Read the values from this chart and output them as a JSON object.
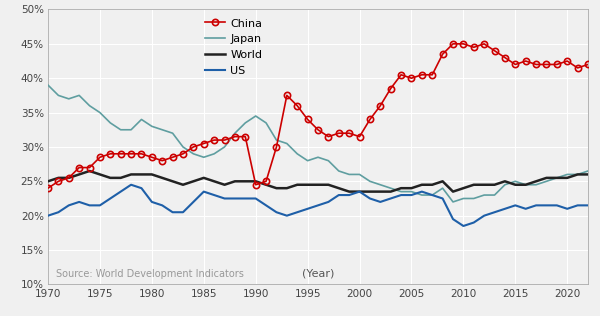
{
  "years": [
    1970,
    1971,
    1972,
    1973,
    1974,
    1975,
    1976,
    1977,
    1978,
    1979,
    1980,
    1981,
    1982,
    1983,
    1984,
    1985,
    1986,
    1987,
    1988,
    1989,
    1990,
    1991,
    1992,
    1993,
    1994,
    1995,
    1996,
    1997,
    1998,
    1999,
    2000,
    2001,
    2002,
    2003,
    2004,
    2005,
    2006,
    2007,
    2008,
    2009,
    2010,
    2011,
    2012,
    2013,
    2014,
    2015,
    2016,
    2017,
    2018,
    2019,
    2020,
    2021,
    2022
  ],
  "china": [
    24.0,
    25.0,
    25.5,
    27.0,
    27.0,
    28.5,
    29.0,
    29.0,
    29.0,
    29.0,
    28.5,
    28.0,
    28.5,
    29.0,
    30.0,
    30.5,
    31.0,
    31.0,
    31.5,
    31.5,
    24.5,
    25.0,
    30.0,
    37.5,
    36.0,
    34.0,
    32.5,
    31.5,
    32.0,
    32.0,
    31.5,
    34.0,
    36.0,
    38.5,
    40.5,
    40.0,
    40.5,
    40.5,
    43.5,
    45.0,
    45.0,
    44.5,
    45.0,
    44.0,
    43.0,
    42.0,
    42.5,
    42.0,
    42.0,
    42.0,
    42.5,
    41.5,
    42.0
  ],
  "japan": [
    39.0,
    37.5,
    37.0,
    37.5,
    36.0,
    35.0,
    33.5,
    32.5,
    32.5,
    34.0,
    33.0,
    32.5,
    32.0,
    30.0,
    29.0,
    28.5,
    29.0,
    30.0,
    32.0,
    33.5,
    34.5,
    33.5,
    31.0,
    30.5,
    29.0,
    28.0,
    28.5,
    28.0,
    26.5,
    26.0,
    26.0,
    25.0,
    24.5,
    24.0,
    23.5,
    23.5,
    23.0,
    23.0,
    24.0,
    22.0,
    22.5,
    22.5,
    23.0,
    23.0,
    24.5,
    25.0,
    24.5,
    24.5,
    25.0,
    25.5,
    26.0,
    26.0,
    26.5
  ],
  "world": [
    25.0,
    25.5,
    25.5,
    26.0,
    26.5,
    26.0,
    25.5,
    25.5,
    26.0,
    26.0,
    26.0,
    25.5,
    25.0,
    24.5,
    25.0,
    25.5,
    25.0,
    24.5,
    25.0,
    25.0,
    25.0,
    24.5,
    24.0,
    24.0,
    24.5,
    24.5,
    24.5,
    24.5,
    24.0,
    23.5,
    23.5,
    23.5,
    23.5,
    23.5,
    24.0,
    24.0,
    24.5,
    24.5,
    25.0,
    23.5,
    24.0,
    24.5,
    24.5,
    24.5,
    25.0,
    24.5,
    24.5,
    25.0,
    25.5,
    25.5,
    25.5,
    26.0,
    26.0
  ],
  "us": [
    20.0,
    20.5,
    21.5,
    22.0,
    21.5,
    21.5,
    22.5,
    23.5,
    24.5,
    24.0,
    22.0,
    21.5,
    20.5,
    20.5,
    22.0,
    23.5,
    23.0,
    22.5,
    22.5,
    22.5,
    22.5,
    21.5,
    20.5,
    20.0,
    20.5,
    21.0,
    21.5,
    22.0,
    23.0,
    23.0,
    23.5,
    22.5,
    22.0,
    22.5,
    23.0,
    23.0,
    23.5,
    23.0,
    22.5,
    19.5,
    18.5,
    19.0,
    20.0,
    20.5,
    21.0,
    21.5,
    21.0,
    21.5,
    21.5,
    21.5,
    21.0,
    21.5,
    21.5
  ],
  "china_color": "#cc0000",
  "japan_color": "#5f9ea0",
  "world_color": "#222222",
  "us_color": "#1e5fa8",
  "background_color": "#f0f0f0",
  "grid_color": "#ffffff",
  "xlim": [
    1970,
    2022
  ],
  "ylim": [
    10,
    50
  ],
  "yticks": [
    10,
    15,
    20,
    25,
    30,
    35,
    40,
    45,
    50
  ],
  "xticks": [
    1970,
    1975,
    1980,
    1985,
    1990,
    1995,
    2000,
    2005,
    2010,
    2015,
    2020
  ],
  "source_text": "Source: World Development Indicators",
  "xlabel_text": "(Year)",
  "legend_labels": [
    "China",
    "Japan",
    "World",
    "US"
  ]
}
